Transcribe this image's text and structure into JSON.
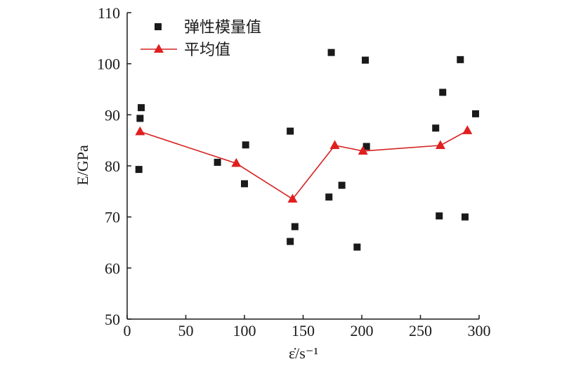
{
  "chart_data": {
    "type": "scatter",
    "xlim": [
      0,
      300
    ],
    "ylim": [
      50,
      110
    ],
    "x_ticks": [
      0,
      50,
      100,
      150,
      200,
      250,
      300
    ],
    "y_ticks": [
      50,
      60,
      70,
      80,
      90,
      100,
      110
    ],
    "xlabel": "ε̇/s⁻¹",
    "ylabel": "E/GPa",
    "legend_position": "top-left",
    "grid": false,
    "series": [
      {
        "name": "弹性模量值",
        "type": "scatter",
        "marker": "square",
        "color": "#1a1a1a",
        "points": [
          {
            "x": 10,
            "y": 79.3
          },
          {
            "x": 11,
            "y": 89.3
          },
          {
            "x": 12,
            "y": 91.4
          },
          {
            "x": 77,
            "y": 80.7
          },
          {
            "x": 100,
            "y": 76.5
          },
          {
            "x": 101,
            "y": 84.1
          },
          {
            "x": 139,
            "y": 65.2
          },
          {
            "x": 139,
            "y": 86.8
          },
          {
            "x": 143,
            "y": 68.1
          },
          {
            "x": 172,
            "y": 73.9
          },
          {
            "x": 174,
            "y": 102.2
          },
          {
            "x": 183,
            "y": 76.2
          },
          {
            "x": 196,
            "y": 64.1
          },
          {
            "x": 203,
            "y": 100.7
          },
          {
            "x": 204,
            "y": 83.8
          },
          {
            "x": 263,
            "y": 87.4
          },
          {
            "x": 266,
            "y": 70.2
          },
          {
            "x": 269,
            "y": 94.4
          },
          {
            "x": 284,
            "y": 100.8
          },
          {
            "x": 288,
            "y": 70.0
          },
          {
            "x": 297,
            "y": 90.2
          }
        ]
      },
      {
        "name": "平均值",
        "type": "line",
        "marker": "triangle",
        "line_color": "#d62020",
        "marker_color": "#e01f1f",
        "points": [
          {
            "x": 11,
            "y": 86.7
          },
          {
            "x": 93,
            "y": 80.5
          },
          {
            "x": 141,
            "y": 73.5
          },
          {
            "x": 177,
            "y": 84.0
          },
          {
            "x": 201,
            "y": 82.9
          },
          {
            "x": 267,
            "y": 84.0
          },
          {
            "x": 290,
            "y": 86.9
          }
        ]
      }
    ]
  }
}
